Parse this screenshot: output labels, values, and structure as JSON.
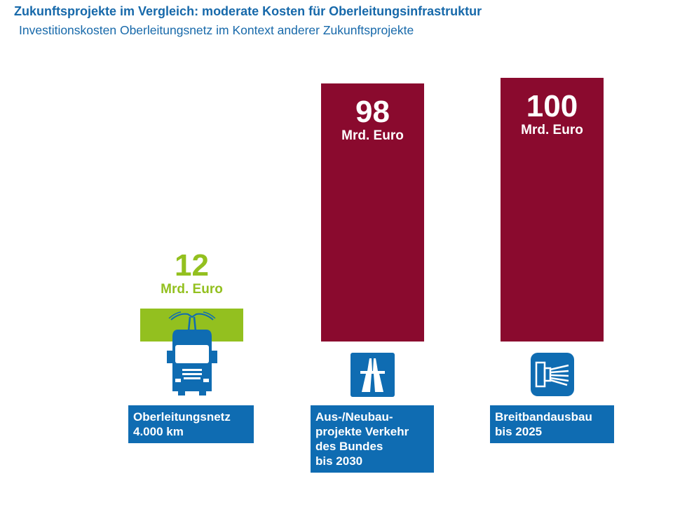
{
  "title": "Zukunftsprojekte im Vergleich: moderate Kosten für Oberleitungsinfrastruktur",
  "subtitle": "Investitionskosten Oberleitungsnetz im Kontext anderer Zukunftsprojekte",
  "colors": {
    "highlight": "#93c01f",
    "bars": "#8a0a2e",
    "label": "#0f6cb2"
  },
  "chart_data": {
    "type": "bar",
    "title": "Zukunftsprojekte im Vergleich: moderate Kosten für Oberleitungsinfrastruktur",
    "subtitle": "Investitionskosten Oberleitungsnetz im Kontext anderer Zukunftsprojekte",
    "unit": "Mrd. Euro",
    "categories": [
      "Oberleitungsnetz 4.000 km",
      "Aus-/Neubauprojekte Verkehr des Bundes bis 2030",
      "Breitbandausbau bis 2025"
    ],
    "values": [
      12,
      98,
      100
    ],
    "ylim": [
      0,
      100
    ],
    "bars": [
      {
        "value_label": "12",
        "unit_label": "Mrd. Euro",
        "label_lines": [
          "Oberleitungsnetz",
          "4.000 km"
        ],
        "icon": "electric-truck-icon",
        "color": "#93c01f"
      },
      {
        "value_label": "98",
        "unit_label": "Mrd. Euro",
        "label_lines": [
          "Aus-/Neubau-",
          "projekte Verkehr",
          "des Bundes",
          "bis 2030"
        ],
        "icon": "highway-icon",
        "color": "#8a0a2e"
      },
      {
        "value_label": "100",
        "unit_label": "Mrd. Euro",
        "label_lines": [
          "Breitbandausbau",
          "bis 2025"
        ],
        "icon": "fiber-cable-icon",
        "color": "#8a0a2e"
      }
    ]
  }
}
